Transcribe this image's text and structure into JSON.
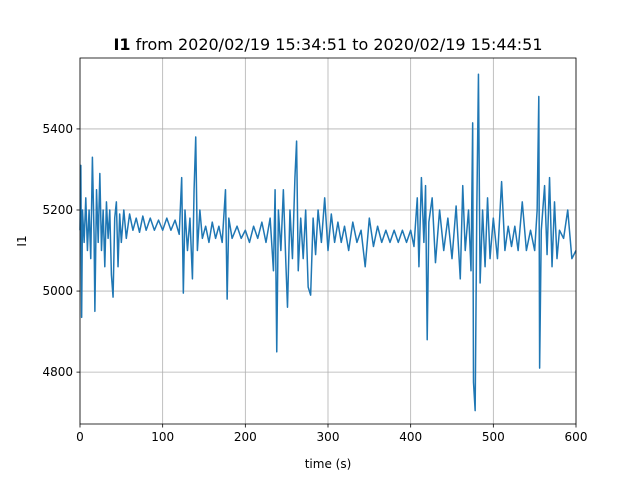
{
  "chart_data": {
    "type": "line",
    "title": [
      "I1",
      "from 2020/02/19 15:34:51 to 2020/02/19 15:44:51"
    ],
    "xlabel": "time (s)",
    "ylabel": "I1",
    "x": [
      0,
      1,
      2,
      3,
      5,
      7,
      9,
      11,
      13,
      15,
      17,
      18,
      20,
      22,
      24,
      26,
      28,
      30,
      32,
      34,
      36,
      38,
      40,
      42,
      44,
      46,
      48,
      50,
      53,
      56,
      60,
      64,
      68,
      72,
      76,
      80,
      85,
      90,
      95,
      100,
      105,
      110,
      115,
      120,
      123,
      125,
      127,
      130,
      133,
      136,
      138,
      140,
      142,
      145,
      148,
      152,
      156,
      160,
      164,
      168,
      172,
      176,
      178,
      180,
      184,
      190,
      195,
      200,
      205,
      210,
      215,
      220,
      225,
      230,
      234,
      236,
      238,
      240,
      243,
      246,
      249,
      251,
      254,
      257,
      260,
      262,
      264,
      267,
      270,
      273,
      276,
      279,
      282,
      285,
      288,
      292,
      296,
      300,
      304,
      308,
      312,
      316,
      320,
      325,
      330,
      335,
      340,
      345,
      350,
      355,
      360,
      365,
      370,
      375,
      380,
      385,
      390,
      395,
      400,
      404,
      408,
      410,
      413,
      416,
      418,
      420,
      422,
      426,
      430,
      435,
      440,
      445,
      450,
      455,
      460,
      463,
      466,
      470,
      473,
      475,
      476,
      478,
      480,
      482,
      484,
      487,
      490,
      493,
      496,
      500,
      505,
      510,
      514,
      518,
      522,
      526,
      530,
      535,
      540,
      545,
      550,
      553,
      555,
      556,
      558,
      562,
      565,
      568,
      571,
      574,
      577,
      580,
      585,
      590,
      595,
      600
    ],
    "series": [
      {
        "name": "I1",
        "color": "#1f77b4",
        "values": [
          5150,
          5310,
          4935,
          5200,
          5120,
          5230,
          5100,
          5200,
          5080,
          5330,
          5140,
          4950,
          5250,
          5120,
          5290,
          5100,
          5200,
          5060,
          5220,
          5130,
          5200,
          5040,
          4985,
          5180,
          5220,
          5060,
          5190,
          5120,
          5200,
          5130,
          5190,
          5150,
          5180,
          5145,
          5185,
          5150,
          5180,
          5150,
          5175,
          5150,
          5180,
          5150,
          5175,
          5140,
          5280,
          4995,
          5200,
          5100,
          5180,
          5030,
          5250,
          5380,
          5100,
          5200,
          5130,
          5160,
          5120,
          5170,
          5130,
          5160,
          5120,
          5250,
          4980,
          5180,
          5130,
          5160,
          5130,
          5150,
          5120,
          5160,
          5130,
          5170,
          5120,
          5180,
          5050,
          5250,
          4850,
          5200,
          5100,
          5250,
          5070,
          4960,
          5200,
          5080,
          5280,
          5370,
          5050,
          5180,
          5080,
          5200,
          5010,
          4990,
          5180,
          5090,
          5200,
          5120,
          5230,
          5100,
          5190,
          5120,
          5170,
          5120,
          5160,
          5100,
          5170,
          5120,
          5150,
          5060,
          5180,
          5110,
          5160,
          5120,
          5150,
          5120,
          5150,
          5120,
          5150,
          5120,
          5150,
          5110,
          5230,
          5060,
          5280,
          5120,
          5260,
          4880,
          5170,
          5230,
          5070,
          5200,
          5100,
          5180,
          5080,
          5210,
          5030,
          5260,
          5100,
          5200,
          5050,
          5415,
          4775,
          4705,
          5200,
          5535,
          5020,
          5200,
          5060,
          5230,
          5080,
          5180,
          5080,
          5270,
          5100,
          5160,
          5110,
          5160,
          5100,
          5220,
          5100,
          5150,
          5100,
          5200,
          5480,
          4810,
          5150,
          5260,
          5090,
          5280,
          5060,
          5220,
          5080,
          5150,
          5130,
          5200,
          5080,
          5100
        ]
      }
    ],
    "xlim": [
      0,
      600
    ],
    "xticks": [
      0,
      100,
      200,
      300,
      400,
      500,
      600
    ],
    "ylim": [
      4672,
      5575
    ],
    "yticks": [
      4800,
      5000,
      5200,
      5400
    ],
    "grid": true
  }
}
